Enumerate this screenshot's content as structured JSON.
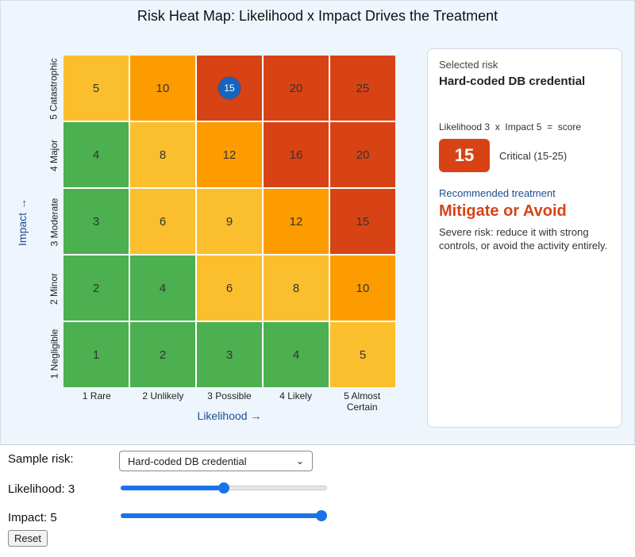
{
  "title": "Risk Heat Map: Likelihood x Impact Drives the Treatment",
  "axes": {
    "x_title": "Likelihood →",
    "y_title": "Impact →",
    "x_labels": [
      "1 Rare",
      "2 Unlikely",
      "3 Possible",
      "4 Likely",
      "5 Almost Certain"
    ],
    "y_labels": [
      "5 Catastrophic",
      "4 Major",
      "3 Moderate",
      "2 Minor",
      "1 Negligible"
    ]
  },
  "matrix": {
    "rows": [
      {
        "impact": 5,
        "cells": [
          {
            "v": "5",
            "level": "med"
          },
          {
            "v": "10",
            "level": "high"
          },
          {
            "v": "15",
            "level": "crit"
          },
          {
            "v": "20",
            "level": "crit"
          },
          {
            "v": "25",
            "level": "crit"
          }
        ]
      },
      {
        "impact": 4,
        "cells": [
          {
            "v": "4",
            "level": "low"
          },
          {
            "v": "8",
            "level": "med"
          },
          {
            "v": "12",
            "level": "high"
          },
          {
            "v": "16",
            "level": "crit"
          },
          {
            "v": "20",
            "level": "crit"
          }
        ]
      },
      {
        "impact": 3,
        "cells": [
          {
            "v": "3",
            "level": "low"
          },
          {
            "v": "6",
            "level": "med"
          },
          {
            "v": "9",
            "level": "med"
          },
          {
            "v": "12",
            "level": "high"
          },
          {
            "v": "15",
            "level": "crit"
          }
        ]
      },
      {
        "impact": 2,
        "cells": [
          {
            "v": "2",
            "level": "low"
          },
          {
            "v": "4",
            "level": "low"
          },
          {
            "v": "6",
            "level": "med"
          },
          {
            "v": "8",
            "level": "med"
          },
          {
            "v": "10",
            "level": "high"
          }
        ]
      },
      {
        "impact": 1,
        "cells": [
          {
            "v": "1",
            "level": "low"
          },
          {
            "v": "2",
            "level": "low"
          },
          {
            "v": "3",
            "level": "low"
          },
          {
            "v": "4",
            "level": "low"
          },
          {
            "v": "5",
            "level": "med"
          }
        ]
      }
    ],
    "colors": {
      "low": "#4caf50",
      "med": "#fbbf2d",
      "high": "#fd9c00",
      "crit": "#d84315",
      "marker": "#1565c0"
    }
  },
  "panel": {
    "selected_label": "Selected risk",
    "risk_name": "Hard-coded DB credential",
    "formula": "Likelihood 3  x  Impact 5  =  score",
    "score": "15",
    "level": "Critical (15-25)",
    "rec_label": "Recommended treatment",
    "treatment": "Mitigate or Avoid",
    "description": "Severe risk: reduce it with strong controls, or avoid the activity entirely."
  },
  "controls": {
    "sample_label": "Sample risk:",
    "sample_value": "Hard-coded DB credential",
    "likelihood_label": "Likelihood: 3",
    "likelihood": 3,
    "impact_label": "Impact: 5",
    "impact": 5,
    "min": 1,
    "max": 5,
    "reset_label": "Reset"
  }
}
